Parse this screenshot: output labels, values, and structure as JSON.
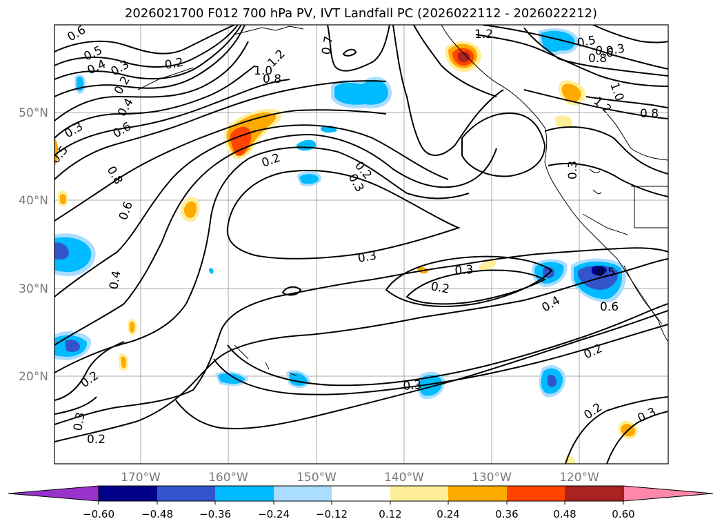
{
  "title": "2026021700 F012 700 hPa PV, IVT Landfall PC (2026022112 - 2026022212)",
  "map": {
    "lat_labels": [
      "50°N",
      "40°N",
      "30°N",
      "20°N"
    ],
    "lon_labels": [
      "170°W",
      "160°W",
      "150°W",
      "140°W",
      "130°W",
      "120°W"
    ],
    "contour_labels": [
      "0.6",
      "0.5",
      "0.4",
      "0.3",
      "0.2",
      "0.2",
      "0.4",
      "0.6",
      "0.8",
      "0.5",
      "0.3",
      "0.6",
      "0.4",
      "0.2",
      "0.3",
      "0.2",
      "0.2",
      "1.0",
      "1.2",
      "0.8",
      "0.7",
      "1.2",
      "0.5",
      "0.6",
      "0.8",
      "1.0",
      "1.2",
      "0.8",
      "0.3",
      "0.2",
      "0.3",
      "0.3",
      "0.3",
      "0.2",
      "0.3",
      "0.4",
      "0.5",
      "0.6",
      "0.2",
      "0.2",
      "0.3",
      "0.3"
    ]
  },
  "colorbar": {
    "ticks": [
      "−0.60",
      "−0.48",
      "−0.36",
      "−0.24",
      "−0.12",
      "0.12",
      "0.24",
      "0.36",
      "0.48",
      "0.60"
    ],
    "colors": {
      "under": "#9933cc",
      "c1": "#000088",
      "c2": "#3355cc",
      "c3": "#00bbff",
      "c4": "#aaddff",
      "c5": "#ffffff",
      "c6": "#ffee99",
      "c7": "#ffaa00",
      "c8": "#ff4400",
      "c9": "#aa2222",
      "over": "#ff88aa"
    }
  }
}
